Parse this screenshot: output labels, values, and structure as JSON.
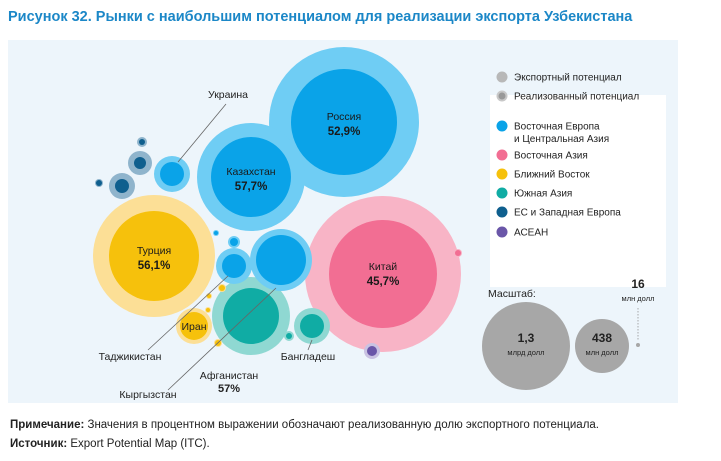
{
  "title": "Рисунок 32. Рынки с наибольшим потенциалом для реализации экспорта Узбекистана",
  "colors": {
    "panel_bg": "#edf5fb",
    "potential": "#b8b8b8",
    "realized": "#999999",
    "east_europe": "#0aa3e8",
    "east_europe_outer": "#6fcdf4",
    "east_asia": "#f26e93",
    "east_asia_outer": "#f8b4c6",
    "middle_east": "#f6c10c",
    "middle_east_outer": "#fcdf96",
    "south_asia": "#10aca4",
    "south_asia_outer": "#8fd8d2",
    "eu": "#0f5f8e",
    "eu_outer": "#8fb4cc",
    "asean": "#6a56a8",
    "asean_outer": "#c9c2e2"
  },
  "legend": [
    {
      "label": "Экспортный потенциал",
      "color": "#b8b8b8",
      "ring": false
    },
    {
      "label": "Реализованный потенциал",
      "color": "#999999",
      "ring": true
    },
    {
      "label": "Восточная Европа",
      "label2": "и Центральная Азия",
      "color": "#0aa3e8"
    },
    {
      "label": "Восточная Азия",
      "color": "#f26e93"
    },
    {
      "label": "Ближний Восток",
      "color": "#f6c10c"
    },
    {
      "label": "Южная Азия",
      "color": "#10aca4"
    },
    {
      "label": "ЕС и Западная Европа",
      "color": "#0f5f8e"
    },
    {
      "label": "АСЕАН",
      "color": "#6a56a8"
    }
  ],
  "scale": {
    "title": "Масштаб:",
    "items": [
      {
        "value": "1,3",
        "unit": "млрд долл"
      },
      {
        "value": "438",
        "unit": "млн долл"
      },
      {
        "value": "16",
        "unit": "млн долл"
      }
    ]
  },
  "chart_data": {
    "type": "bubble",
    "series": [
      {
        "name": "Россия",
        "region": "Восточная Европа и Центральная Азия",
        "realized_pct": "52,9%"
      },
      {
        "name": "Казахстан",
        "region": "Восточная Европа и Центральная Азия",
        "realized_pct": "57,7%"
      },
      {
        "name": "Китай",
        "region": "Восточная Азия",
        "realized_pct": "45,7%"
      },
      {
        "name": "Турция",
        "region": "Ближний Восток",
        "realized_pct": "56,1%"
      },
      {
        "name": "Афганистан",
        "region": "Южная Азия",
        "realized_pct": "57%"
      },
      {
        "name": "Украина",
        "region": "Восточная Европа и Центральная Азия",
        "realized_pct": ""
      },
      {
        "name": "Таджикистан",
        "region": "Восточная Европа и Центральная Азия",
        "realized_pct": ""
      },
      {
        "name": "Кыргызстан",
        "region": "Восточная Европа и Центральная Азия",
        "realized_pct": ""
      },
      {
        "name": "Иран",
        "region": "Ближний Восток",
        "realized_pct": ""
      },
      {
        "name": "Бангладеш",
        "region": "Южная Азия",
        "realized_pct": ""
      }
    ]
  },
  "note": {
    "label": "Примечание:",
    "text": " Значения в процентном выражении обозначают реализованную долю экспортного потенциала."
  },
  "source": {
    "label": "Источник:",
    "text": " Export Potential Map (ITC)."
  }
}
